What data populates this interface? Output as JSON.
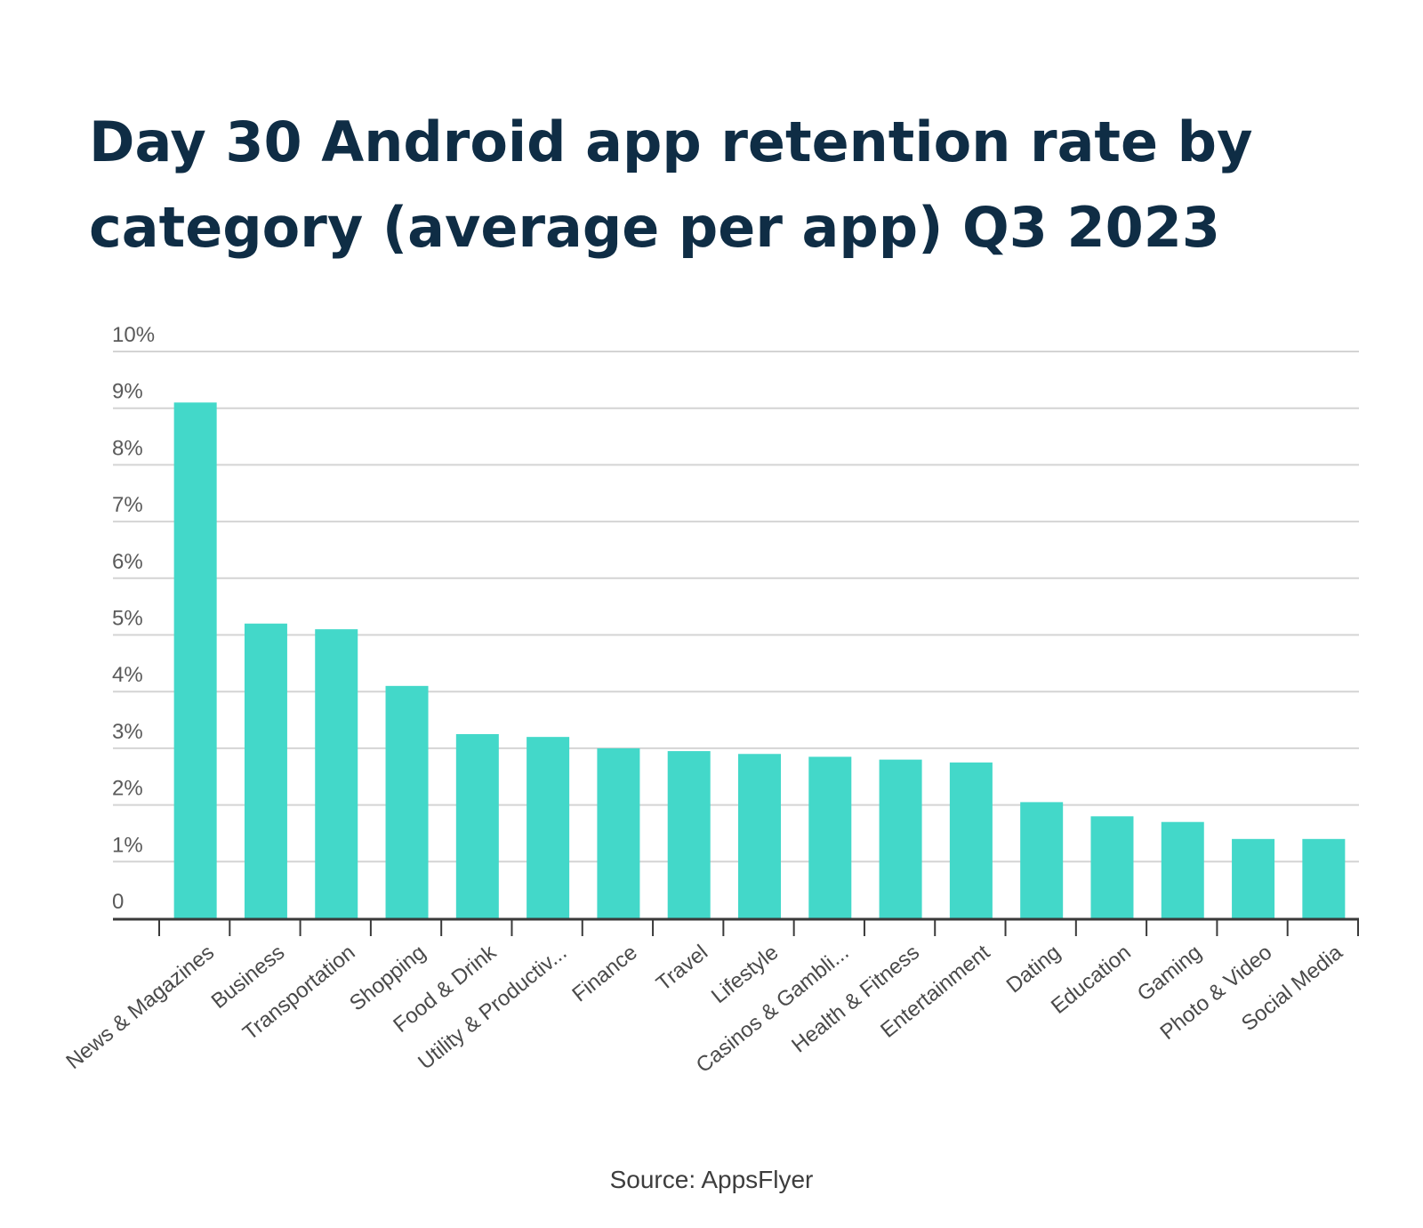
{
  "chart_data": {
    "type": "bar",
    "title": "Day 30 Android app retention rate by category (average per app) Q3 2023",
    "xlabel": "",
    "ylabel": "",
    "ylim": [
      0,
      10
    ],
    "y_ticks": [
      "0",
      "1%",
      "2%",
      "3%",
      "4%",
      "5%",
      "6%",
      "7%",
      "8%",
      "9%",
      "10%"
    ],
    "grid": true,
    "bar_color": "#43d8c9",
    "categories": [
      "News & Magazines",
      "Business",
      "Transportation",
      "Shopping",
      "Food & Drink",
      "Utility & Productiv...",
      "Finance",
      "Travel",
      "Lifestyle",
      "Casinos & Gambli...",
      "Health & Fitness",
      "Entertainment",
      "Dating",
      "Education",
      "Gaming",
      "Photo & Video",
      "Social Media"
    ],
    "values": [
      9.1,
      5.2,
      5.1,
      4.1,
      3.25,
      3.2,
      3.0,
      2.95,
      2.9,
      2.85,
      2.8,
      2.75,
      2.05,
      1.8,
      1.7,
      1.4,
      1.4
    ],
    "source": "Source: AppsFlyer"
  }
}
